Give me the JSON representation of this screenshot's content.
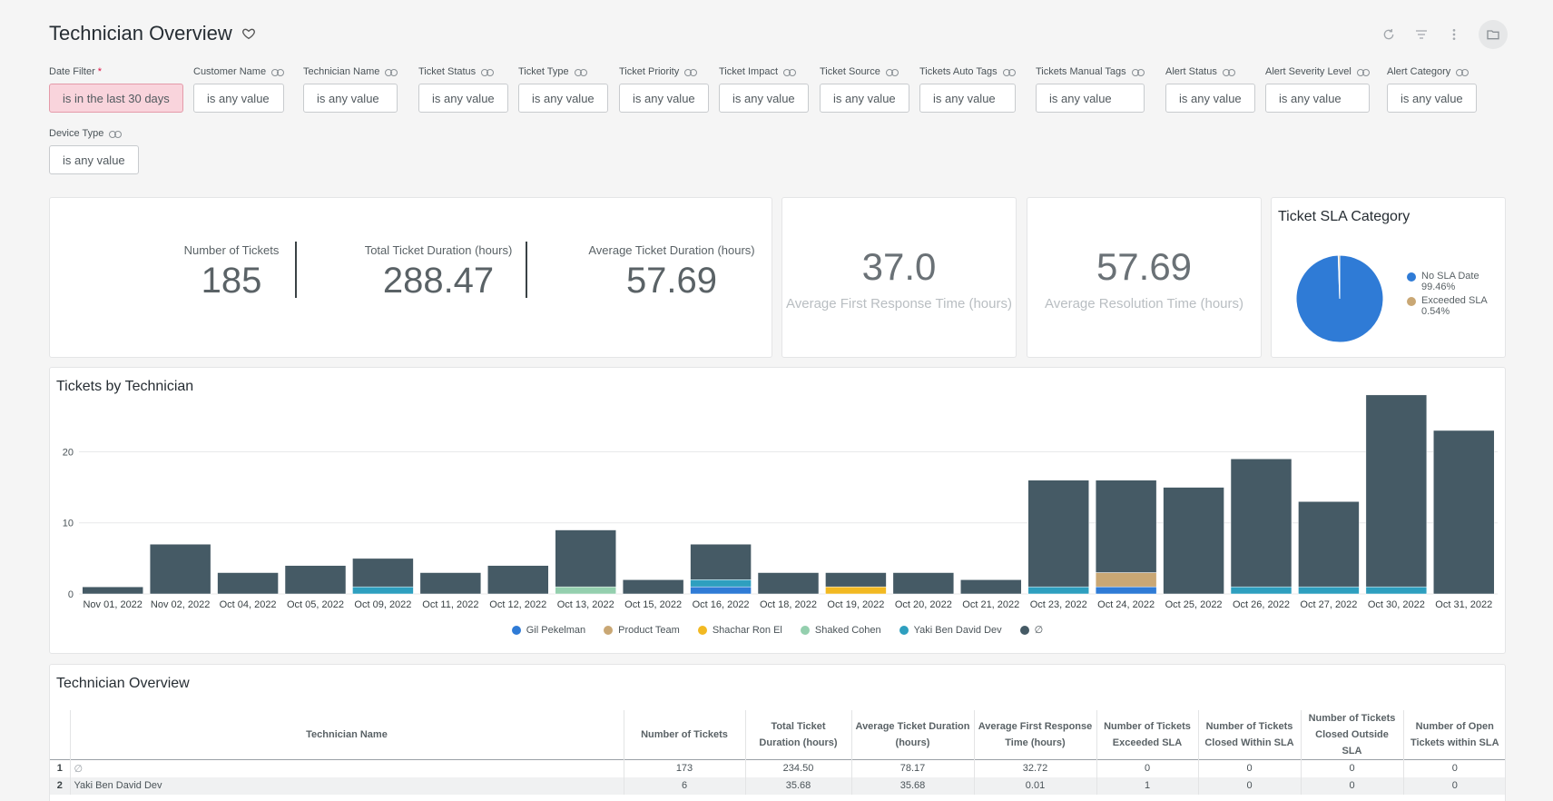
{
  "header": {
    "title": "Technician Overview",
    "tools": [
      "refresh-icon",
      "filter-icon",
      "more-vert-icon",
      "folder-icon"
    ]
  },
  "filters": [
    {
      "label": "Date Filter",
      "value": "is in the last 30 days",
      "required": "*"
    },
    {
      "label": "Customer Name",
      "value": "is any value"
    },
    {
      "label": "Technician Name",
      "value": "is any value"
    },
    {
      "label": "Ticket Status",
      "value": "is any value"
    },
    {
      "label": "Ticket Type",
      "value": "is any value"
    },
    {
      "label": "Ticket Priority",
      "value": "is any value"
    },
    {
      "label": "Ticket Impact",
      "value": "is any value"
    },
    {
      "label": "Ticket Source",
      "value": "is any value"
    },
    {
      "label": "Tickets Auto Tags",
      "value": "is any value"
    },
    {
      "label": "Tickets Manual Tags",
      "value": "is any value"
    },
    {
      "label": "Alert Status",
      "value": "is any value"
    },
    {
      "label": "Alert Severity Level",
      "value": "is any value"
    },
    {
      "label": "Alert Category",
      "value": "is any value"
    },
    {
      "label": "Device Type",
      "value": "is any value"
    }
  ],
  "kpis": [
    {
      "label": "Number of Tickets",
      "value": "185"
    },
    {
      "label": "Total Ticket Duration (hours)",
      "value": "288.47"
    },
    {
      "label": "Average Ticket Duration (hours)",
      "value": "57.69"
    }
  ],
  "single_values": [
    {
      "value": "37.0",
      "label": "Average First Response Time (hours)"
    },
    {
      "value": "57.69",
      "label": "Average Resolution Time (hours)"
    }
  ],
  "sla_pie": {
    "title": "Ticket SLA Category",
    "slices": [
      {
        "name": "No SLA Date",
        "pct": "99.46%",
        "value": 99.46,
        "color": "#2f7bd6"
      },
      {
        "name": "Exceeded SLA",
        "pct": "0.54%",
        "value": 0.54,
        "color": "#c9a774"
      }
    ]
  },
  "chart_data": {
    "type": "bar",
    "title": "Tickets by Technician",
    "stacked": true,
    "categories": [
      "Nov 01, 2022",
      "Nov 02, 2022",
      "Oct 04, 2022",
      "Oct 05, 2022",
      "Oct 09, 2022",
      "Oct 11, 2022",
      "Oct 12, 2022",
      "Oct 13, 2022",
      "Oct 15, 2022",
      "Oct 16, 2022",
      "Oct 18, 2022",
      "Oct 19, 2022",
      "Oct 20, 2022",
      "Oct 21, 2022",
      "Oct 23, 2022",
      "Oct 24, 2022",
      "Oct 25, 2022",
      "Oct 26, 2022",
      "Oct 27, 2022",
      "Oct 30, 2022",
      "Oct 31, 2022"
    ],
    "series": [
      {
        "name": "Gil Pekelman",
        "color": "#2f7bd6",
        "values": [
          0,
          0,
          0,
          0,
          0,
          0,
          0,
          0,
          0,
          1,
          0,
          0,
          0,
          0,
          0,
          1,
          0,
          0,
          0,
          0,
          0
        ]
      },
      {
        "name": "Product Team",
        "color": "#c9a774",
        "values": [
          0,
          0,
          0,
          0,
          0,
          0,
          0,
          0,
          0,
          0,
          0,
          0,
          0,
          0,
          0,
          2,
          0,
          0,
          0,
          0,
          0
        ]
      },
      {
        "name": "Shachar Ron El",
        "color": "#f2b922",
        "values": [
          0,
          0,
          0,
          0,
          0,
          0,
          0,
          0,
          0,
          0,
          0,
          1,
          0,
          0,
          0,
          0,
          0,
          0,
          0,
          0,
          0
        ]
      },
      {
        "name": "Shaked Cohen",
        "color": "#94cfae",
        "values": [
          0,
          0,
          0,
          0,
          0,
          0,
          0,
          1,
          0,
          0,
          0,
          0,
          0,
          0,
          0,
          0,
          0,
          0,
          0,
          0,
          0
        ]
      },
      {
        "name": "Yaki Ben David Dev",
        "color": "#2e9fbf",
        "values": [
          0,
          0,
          0,
          0,
          1,
          0,
          0,
          0,
          0,
          1,
          0,
          0,
          0,
          0,
          1,
          0,
          0,
          1,
          1,
          1,
          0
        ]
      },
      {
        "name": "∅",
        "color": "#455a65",
        "values": [
          1,
          7,
          3,
          4,
          4,
          3,
          4,
          8,
          2,
          5,
          3,
          2,
          3,
          2,
          15,
          13,
          15,
          18,
          12,
          27,
          23
        ]
      }
    ],
    "yticks": [
      0,
      10,
      20
    ],
    "ylim": [
      0,
      29
    ]
  },
  "table": {
    "title": "Technician Overview",
    "columns": [
      "Technician Name",
      "Number of Tickets",
      "Total Ticket Duration (hours)",
      "Average Ticket Duration (hours)",
      "Average First Response Time (hours)",
      "Number of Tickets Exceeded SLA",
      "Number of Tickets Closed Within SLA",
      "Number of Tickets Closed Outside SLA",
      "Number of Open Tickets within SLA"
    ],
    "rows": [
      [
        "1",
        "∅",
        "173",
        "234.50",
        "78.17",
        "32.72",
        "0",
        "0",
        "0",
        "0"
      ],
      [
        "2",
        "Yaki Ben David Dev",
        "6",
        "35.68",
        "35.68",
        "0.01",
        "1",
        "0",
        "0",
        "0"
      ]
    ]
  }
}
